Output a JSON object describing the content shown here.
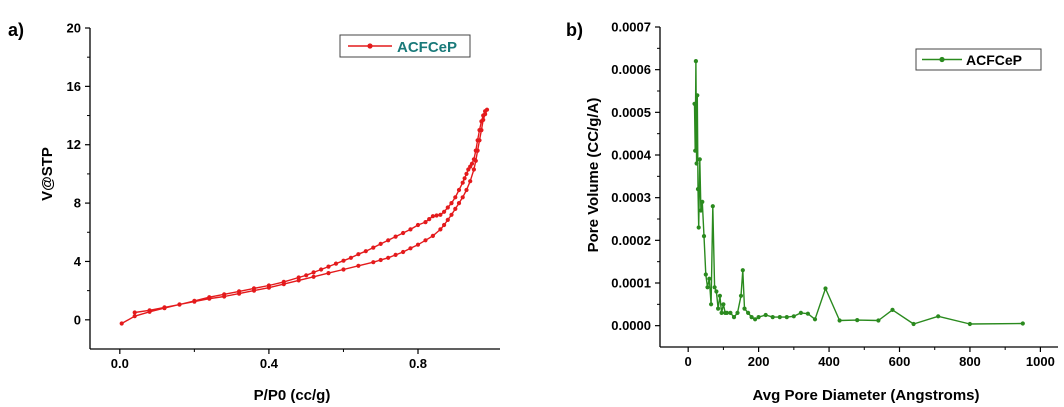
{
  "chart_data": [
    {
      "panel_label": "a)",
      "type": "line",
      "xlabel": "P/P0 (cc/g)",
      "ylabel": "V@STP",
      "xlim": [
        -0.08,
        1.02
      ],
      "ylim": [
        -2,
        20
      ],
      "xticks": [
        0.0,
        0.4,
        0.8
      ],
      "xtick_labels": [
        "0.0",
        "0.4",
        "0.8"
      ],
      "yticks": [
        0,
        4,
        8,
        12,
        16,
        20
      ],
      "ytick_labels": [
        "0",
        "4",
        "8",
        "12",
        "16",
        "20"
      ],
      "color": "#e41a1c",
      "legend_position": "top-right",
      "series": [
        {
          "name": "ACFCeP",
          "x": [
            0.005,
            0.04,
            0.08,
            0.12,
            0.16,
            0.2,
            0.24,
            0.28,
            0.32,
            0.36,
            0.4,
            0.44,
            0.48,
            0.52,
            0.56,
            0.6,
            0.64,
            0.68,
            0.7,
            0.72,
            0.74,
            0.76,
            0.78,
            0.8,
            0.82,
            0.84,
            0.86,
            0.87,
            0.88,
            0.89,
            0.9,
            0.91,
            0.92,
            0.93,
            0.94,
            0.95,
            0.955,
            0.96,
            0.965,
            0.97,
            0.975,
            0.98,
            0.985,
            0.98,
            0.975,
            0.97,
            0.965,
            0.96,
            0.955,
            0.95,
            0.945,
            0.94,
            0.935,
            0.93,
            0.925,
            0.92,
            0.91,
            0.9,
            0.89,
            0.88,
            0.87,
            0.86,
            0.85,
            0.84,
            0.83,
            0.82,
            0.8,
            0.78,
            0.76,
            0.74,
            0.72,
            0.7,
            0.68,
            0.66,
            0.64,
            0.62,
            0.6,
            0.58,
            0.56,
            0.54,
            0.52,
            0.5,
            0.48,
            0.44,
            0.4,
            0.36,
            0.32,
            0.28,
            0.24,
            0.2,
            0.16,
            0.12,
            0.08,
            0.04
          ],
          "y": [
            -0.25,
            0.25,
            0.55,
            0.8,
            1.05,
            1.25,
            1.45,
            1.6,
            1.8,
            2.0,
            2.2,
            2.45,
            2.7,
            2.95,
            3.2,
            3.45,
            3.7,
            3.95,
            4.1,
            4.25,
            4.45,
            4.65,
            4.9,
            5.15,
            5.45,
            5.75,
            6.2,
            6.5,
            6.85,
            7.2,
            7.6,
            8.0,
            8.4,
            8.9,
            9.5,
            10.3,
            10.9,
            11.6,
            12.3,
            13.0,
            13.7,
            14.1,
            14.4,
            14.3,
            14.0,
            13.6,
            13.0,
            12.3,
            11.6,
            11.0,
            10.7,
            10.5,
            10.3,
            10.0,
            9.7,
            9.4,
            8.9,
            8.4,
            8.0,
            7.7,
            7.4,
            7.2,
            7.15,
            7.1,
            6.9,
            6.7,
            6.5,
            6.2,
            5.95,
            5.7,
            5.45,
            5.2,
            4.95,
            4.7,
            4.5,
            4.25,
            4.05,
            3.85,
            3.65,
            3.45,
            3.25,
            3.05,
            2.9,
            2.6,
            2.35,
            2.15,
            1.95,
            1.75,
            1.55,
            1.3,
            1.05,
            0.85,
            0.65,
            0.5
          ]
        }
      ]
    },
    {
      "panel_label": "b)",
      "type": "line",
      "xlabel": "Avg Pore Diameter (Angstroms)",
      "ylabel": "Pore Volume (CC/g/A)",
      "xlim": [
        -80,
        1050
      ],
      "ylim": [
        -5e-05,
        0.0007
      ],
      "xticks": [
        0,
        200,
        400,
        600,
        800,
        1000
      ],
      "xtick_labels": [
        "0",
        "200",
        "400",
        "600",
        "800",
        "1000"
      ],
      "yticks": [
        0.0,
        0.0001,
        0.0002,
        0.0003,
        0.0004,
        0.0005,
        0.0006,
        0.0007
      ],
      "ytick_labels": [
        "0.0000",
        "0.0001",
        "0.0002",
        "0.0003",
        "0.0004",
        "0.0005",
        "0.0006",
        "0.0007"
      ],
      "color": "#2a8a1e",
      "legend_position": "top-right",
      "series": [
        {
          "name": "ACFCeP",
          "x": [
            18,
            20,
            22,
            24,
            26,
            28,
            30,
            33,
            36,
            40,
            45,
            50,
            55,
            60,
            65,
            70,
            75,
            80,
            85,
            90,
            95,
            100,
            105,
            110,
            120,
            130,
            140,
            150,
            155,
            160,
            170,
            180,
            190,
            200,
            220,
            240,
            260,
            280,
            300,
            320,
            340,
            360,
            390,
            430,
            480,
            540,
            580,
            640,
            710,
            800,
            950
          ],
          "y": [
            0.00052,
            0.00041,
            0.00062,
            0.00038,
            0.00054,
            0.00032,
            0.00023,
            0.00039,
            0.00027,
            0.00029,
            0.00021,
            0.00012,
            9e-05,
            0.00011,
            5e-05,
            0.00028,
            9e-05,
            8e-05,
            4e-05,
            7e-05,
            3e-05,
            5e-05,
            3e-05,
            3e-05,
            3e-05,
            2e-05,
            3e-05,
            7e-05,
            0.00013,
            4e-05,
            3e-05,
            2e-05,
            1.5e-05,
            2e-05,
            2.5e-05,
            2e-05,
            2e-05,
            2e-05,
            2.2e-05,
            3e-05,
            2.8e-05,
            1.5e-05,
            8.7e-05,
            1.2e-05,
            1.3e-05,
            1.2e-05,
            3.7e-05,
            4e-06,
            2.2e-05,
            4e-06,
            5e-06
          ]
        }
      ]
    }
  ]
}
